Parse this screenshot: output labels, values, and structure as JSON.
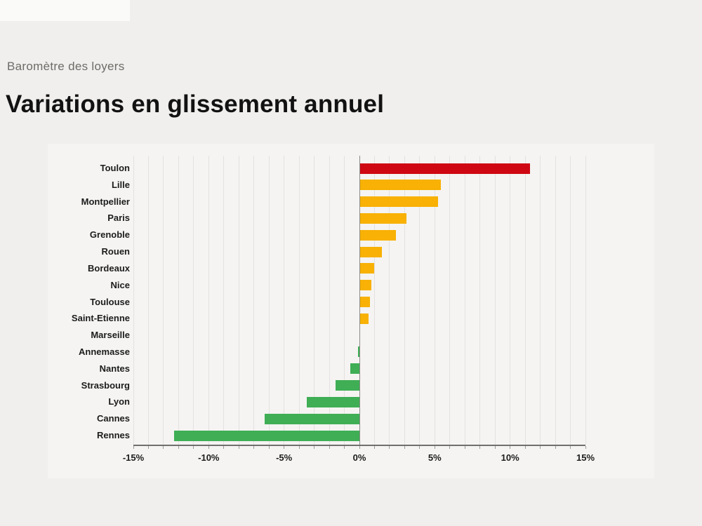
{
  "header": {
    "subtitle": "Baromètre des loyers",
    "title": "Variations en glissement annuel"
  },
  "chart_data": {
    "type": "bar",
    "orientation": "horizontal",
    "title": "Variations en glissement annuel",
    "subtitle": "Baromètre des loyers",
    "categories": [
      "Toulon",
      "Lille",
      "Montpellier",
      "Paris",
      "Grenoble",
      "Rouen",
      "Bordeaux",
      "Nice",
      "Toulouse",
      "Saint-Etienne",
      "Marseille",
      "Annemasse",
      "Nantes",
      "Strasbourg",
      "Lyon",
      "Cannes",
      "Rennes"
    ],
    "values": [
      11.3,
      5.4,
      5.2,
      3.1,
      2.4,
      1.5,
      1.0,
      0.8,
      0.7,
      0.6,
      0.0,
      -0.1,
      -0.6,
      -1.6,
      -3.5,
      -6.3,
      -12.3
    ],
    "value_unit": "%",
    "bar_colors": [
      "#ce0713",
      "#f8b104",
      "#f8b104",
      "#f8b104",
      "#f8b104",
      "#f8b104",
      "#f8b104",
      "#f8b104",
      "#f8b104",
      "#f8b104",
      "#3fae55",
      "#3fae55",
      "#3fae55",
      "#3fae55",
      "#3fae55",
      "#3fae55",
      "#3fae55"
    ],
    "xlim": [
      -15,
      15
    ],
    "x_tick_values": [
      -15,
      -10,
      -5,
      0,
      5,
      10,
      15
    ],
    "x_tick_labels": [
      "-15%",
      "-10%",
      "-5%",
      "0%",
      "5%",
      "10%",
      "15%"
    ],
    "grid_minor_step": 1,
    "grid": "vertical-minor",
    "legend": "none"
  },
  "colors": {
    "page_background": "#f0efed",
    "panel_background": "#f5f4f2",
    "gridline": "#e3e2e0",
    "zero_line": "#8a8a88",
    "axis_line": "#6f6f6d",
    "label_text": "#1c1c1c",
    "subtitle_text": "#6e6b68",
    "title_text": "#121212",
    "positive_high": "#ce0713",
    "positive": "#f8b104",
    "negative": "#3fae55"
  }
}
